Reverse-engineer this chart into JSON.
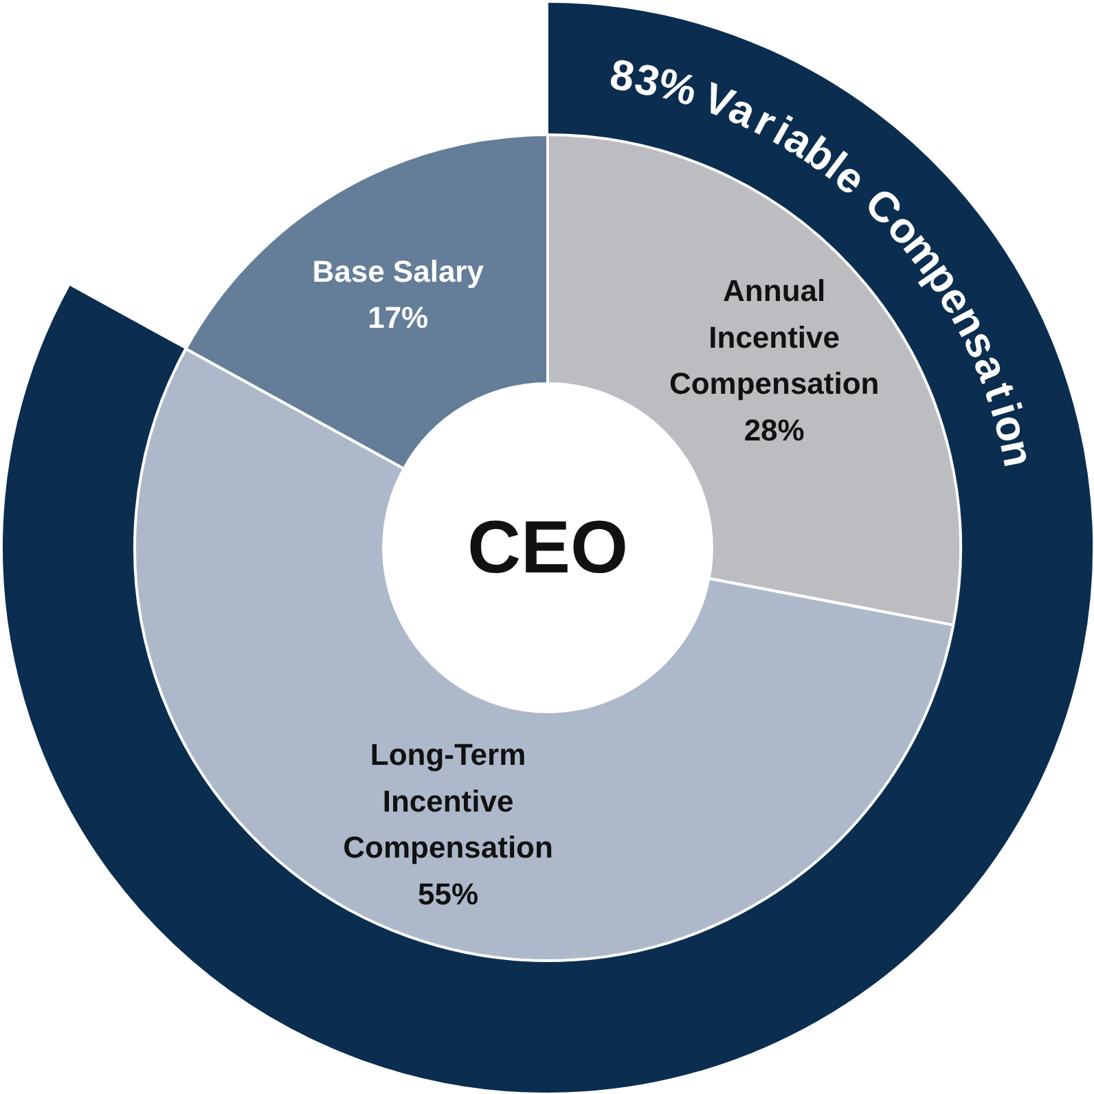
{
  "chart_data": {
    "type": "donut",
    "categories": [
      "Annual Incentive Compensation",
      "Long-Term Incentive Compensation",
      "Base Salary"
    ],
    "annotations": [
      "CEO",
      "83% Variable Compensation"
    ],
    "series": [
      {
        "values": [
          28,
          55,
          17
        ],
        "colors": [
          "#0b2e50",
          "#0b2e50",
          "#ffffff"
        ]
      },
      {
        "values": [
          28,
          55,
          17
        ],
        "colors": [
          "#bcbdc0",
          "#adb9ca",
          "#647d99"
        ],
        "value_labels": [
          "28%",
          "55%",
          "17%"
        ]
      }
    ]
  }
}
